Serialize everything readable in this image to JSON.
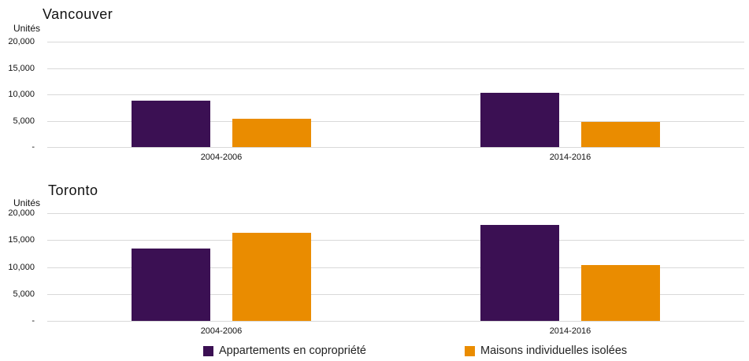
{
  "colors": {
    "apartments": "#3B1053",
    "houses": "#EA8C00",
    "gridline": "#D9D9D9",
    "text": "#000000"
  },
  "legend": {
    "items": [
      {
        "label": "Appartements en copropriété",
        "color": "#3B1053"
      },
      {
        "label": "Maisons individuelles isolées",
        "color": "#EA8C00"
      }
    ]
  },
  "chart_data": [
    {
      "type": "bar",
      "title": "Vancouver",
      "ylabel": "Unités",
      "categories": [
        "2004-2006",
        "2014-2016"
      ],
      "series": [
        {
          "name": "Appartements en copropriété",
          "color": "#3B1053",
          "values": [
            8800,
            10300
          ]
        },
        {
          "name": "Maisons individuelles isolées",
          "color": "#EA8C00",
          "values": [
            5400,
            4800
          ]
        }
      ],
      "ylim": [
        0,
        20000
      ],
      "ytick_labels": [
        "20,000",
        "15,000",
        "10,000",
        "5,000",
        "-"
      ],
      "grid": true,
      "legend_position": "bottom"
    },
    {
      "type": "bar",
      "title": "Toronto",
      "ylabel": "Unités",
      "categories": [
        "2004-2006",
        "2014-2016"
      ],
      "series": [
        {
          "name": "Appartements en copropriété",
          "color": "#3B1053",
          "values": [
            13400,
            17800
          ]
        },
        {
          "name": "Maisons individuelles isolées",
          "color": "#EA8C00",
          "values": [
            16400,
            10300
          ]
        }
      ],
      "ylim": [
        0,
        20000
      ],
      "ytick_labels": [
        "20,000",
        "15,000",
        "10,000",
        "5,000",
        "-"
      ],
      "grid": true,
      "legend_position": "bottom"
    }
  ]
}
